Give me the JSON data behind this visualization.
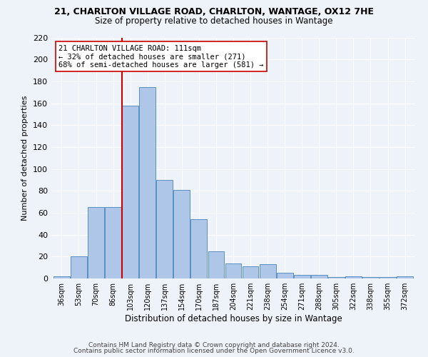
{
  "title1": "21, CHARLTON VILLAGE ROAD, CHARLTON, WANTAGE, OX12 7HE",
  "title2": "Size of property relative to detached houses in Wantage",
  "xlabel": "Distribution of detached houses by size in Wantage",
  "ylabel": "Number of detached properties",
  "bar_labels": [
    "36sqm",
    "53sqm",
    "70sqm",
    "86sqm",
    "103sqm",
    "120sqm",
    "137sqm",
    "154sqm",
    "170sqm",
    "187sqm",
    "204sqm",
    "221sqm",
    "238sqm",
    "254sqm",
    "271sqm",
    "288sqm",
    "305sqm",
    "322sqm",
    "338sqm",
    "355sqm",
    "372sqm"
  ],
  "bar_heights": [
    2,
    20,
    65,
    65,
    158,
    175,
    90,
    81,
    54,
    25,
    14,
    11,
    13,
    5,
    3,
    3,
    1,
    2,
    1,
    1,
    2
  ],
  "bar_color": "#aec6e8",
  "bar_edge_color": "#5a8fc2",
  "vline_color": "#cc0000",
  "annotation_text": "21 CHARLTON VILLAGE ROAD: 111sqm\n← 32% of detached houses are smaller (271)\n68% of semi-detached houses are larger (581) →",
  "annotation_box_color": "#ffffff",
  "annotation_box_edge": "#cc0000",
  "ylim": [
    0,
    220
  ],
  "yticks": [
    0,
    20,
    40,
    60,
    80,
    100,
    120,
    140,
    160,
    180,
    200,
    220
  ],
  "footer1": "Contains HM Land Registry data © Crown copyright and database right 2024.",
  "footer2": "Contains public sector information licensed under the Open Government Licence v3.0.",
  "bg_color": "#eef2f9",
  "grid_color": "#ffffff"
}
